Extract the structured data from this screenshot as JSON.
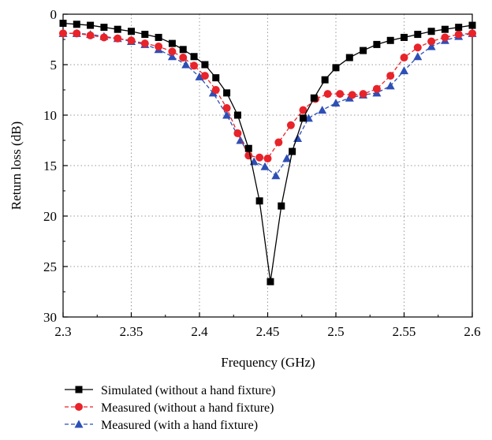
{
  "chart_data": {
    "type": "line",
    "title": "",
    "xlabel": "Frequency (GHz)",
    "ylabel": "Return loss (dB)",
    "xlim": [
      2.3,
      2.6
    ],
    "ylim": [
      0,
      30
    ],
    "y_inverted": true,
    "x_ticks": [
      "2.3",
      "2.35",
      "2.4",
      "2.45",
      "2.5",
      "2.55",
      "2.6"
    ],
    "y_ticks": [
      "0",
      "5",
      "10",
      "15",
      "20",
      "25",
      "30"
    ],
    "grid": "dotted",
    "legend_position": "bottom",
    "series": [
      {
        "name": "Simulated (without a hand fixture)",
        "color": "#000000",
        "marker": "square",
        "line_style": "solid",
        "x": [
          2.3,
          2.31,
          2.32,
          2.33,
          2.34,
          2.35,
          2.36,
          2.37,
          2.38,
          2.388,
          2.396,
          2.404,
          2.412,
          2.42,
          2.428,
          2.436,
          2.444,
          2.452,
          2.46,
          2.468,
          2.476,
          2.484,
          2.492,
          2.5,
          2.51,
          2.52,
          2.53,
          2.54,
          2.55,
          2.56,
          2.57,
          2.58,
          2.59,
          2.6
        ],
        "y": [
          0.9,
          1.0,
          1.1,
          1.3,
          1.5,
          1.7,
          2.0,
          2.3,
          2.9,
          3.5,
          4.2,
          5.0,
          6.3,
          7.8,
          10.0,
          13.3,
          18.5,
          26.5,
          19.0,
          13.6,
          10.3,
          8.3,
          6.5,
          5.3,
          4.3,
          3.6,
          3.0,
          2.6,
          2.3,
          2.0,
          1.7,
          1.5,
          1.3,
          1.1
        ]
      },
      {
        "name": "Measured (without a hand fixture)",
        "color": "#e8232a",
        "marker": "circle",
        "line_style": "dashed",
        "x": [
          2.3,
          2.31,
          2.32,
          2.33,
          2.34,
          2.35,
          2.36,
          2.37,
          2.38,
          2.388,
          2.396,
          2.404,
          2.412,
          2.42,
          2.428,
          2.436,
          2.444,
          2.45,
          2.458,
          2.467,
          2.476,
          2.485,
          2.494,
          2.503,
          2.512,
          2.52,
          2.53,
          2.54,
          2.55,
          2.56,
          2.57,
          2.58,
          2.59,
          2.6
        ],
        "y": [
          1.9,
          1.9,
          2.1,
          2.3,
          2.4,
          2.6,
          2.9,
          3.2,
          3.7,
          4.3,
          5.1,
          6.1,
          7.5,
          9.3,
          11.8,
          14.0,
          14.2,
          14.3,
          12.7,
          11.0,
          9.5,
          8.4,
          7.9,
          7.9,
          8.0,
          7.9,
          7.4,
          6.1,
          4.3,
          3.3,
          2.7,
          2.3,
          2.0,
          1.9
        ]
      },
      {
        "name": "Measured (with a hand fixture)",
        "color": "#2e4fb5",
        "marker": "triangle",
        "line_style": "dashed",
        "x": [
          2.3,
          2.31,
          2.32,
          2.33,
          2.34,
          2.35,
          2.36,
          2.37,
          2.38,
          2.39,
          2.4,
          2.41,
          2.42,
          2.43,
          2.44,
          2.448,
          2.456,
          2.464,
          2.472,
          2.48,
          2.49,
          2.5,
          2.51,
          2.52,
          2.53,
          2.54,
          2.55,
          2.56,
          2.57,
          2.58,
          2.59,
          2.6
        ],
        "y": [
          1.9,
          1.9,
          2.0,
          2.2,
          2.4,
          2.7,
          3.0,
          3.5,
          4.2,
          5.0,
          6.2,
          7.8,
          10.0,
          12.5,
          14.6,
          15.1,
          16.0,
          14.3,
          12.3,
          10.3,
          9.5,
          8.8,
          8.3,
          8.0,
          7.8,
          7.1,
          5.6,
          4.2,
          3.2,
          2.6,
          2.2,
          1.9
        ]
      }
    ]
  }
}
